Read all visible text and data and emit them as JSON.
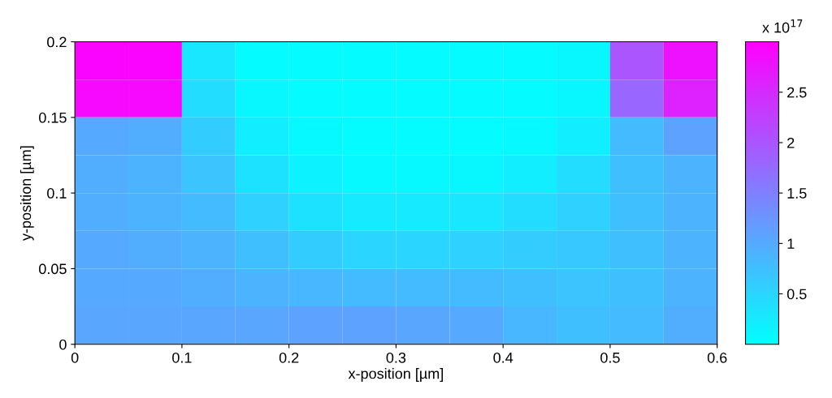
{
  "chart_data": {
    "type": "heatmap",
    "xlabel": "x-position [µm]",
    "ylabel": "y-position [µm]",
    "clabel": "x 10$^{17}$",
    "xlim": [
      0,
      0.6
    ],
    "ylim": [
      0,
      0.2
    ],
    "xticks": [
      0,
      0.1,
      0.2,
      0.3,
      0.4,
      0.5,
      0.6
    ],
    "yticks": [
      0,
      0.05,
      0.1,
      0.15,
      0.2
    ],
    "clim": [
      0,
      3
    ],
    "cticks": [
      0.5,
      1,
      1.5,
      2,
      2.5
    ],
    "colors": [
      "#00ffff",
      "#ff00ff"
    ],
    "cells": [
      [
        2.95,
        2.95,
        0.3,
        0.05,
        0.05,
        0.05,
        0.05,
        0.05,
        0.05,
        0.1,
        2.0,
        2.8
      ],
      [
        2.9,
        2.9,
        0.4,
        0.1,
        0.05,
        0.05,
        0.05,
        0.05,
        0.05,
        0.1,
        1.8,
        2.6
      ],
      [
        1.0,
        0.95,
        0.6,
        0.2,
        0.08,
        0.05,
        0.05,
        0.05,
        0.08,
        0.2,
        0.8,
        1.1
      ],
      [
        0.95,
        0.9,
        0.7,
        0.35,
        0.15,
        0.08,
        0.08,
        0.1,
        0.2,
        0.4,
        0.75,
        0.9
      ],
      [
        0.95,
        0.9,
        0.8,
        0.55,
        0.35,
        0.25,
        0.25,
        0.3,
        0.4,
        0.55,
        0.75,
        0.9
      ],
      [
        1.0,
        0.95,
        0.9,
        0.75,
        0.6,
        0.5,
        0.5,
        0.55,
        0.6,
        0.65,
        0.75,
        0.9
      ],
      [
        1.0,
        1.0,
        0.95,
        0.9,
        0.85,
        0.8,
        0.8,
        0.8,
        0.75,
        0.7,
        0.75,
        0.9
      ],
      [
        1.05,
        1.05,
        1.05,
        1.05,
        1.1,
        1.1,
        1.05,
        1.0,
        0.85,
        0.75,
        0.8,
        0.95
      ]
    ]
  }
}
